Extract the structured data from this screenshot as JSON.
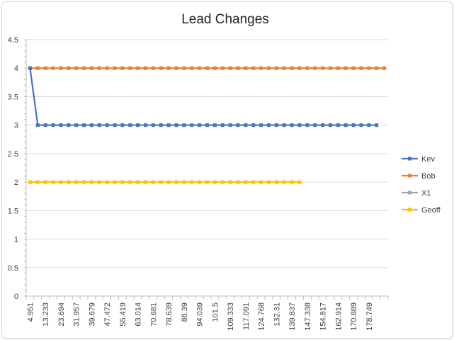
{
  "chart_data": {
    "type": "line",
    "title": "Lead Changes",
    "xlabel": "",
    "ylabel": "",
    "ylim": [
      0,
      4.5
    ],
    "yticks": [
      "0",
      "0.5",
      "1",
      "1.5",
      "2",
      "2.5",
      "3",
      "3.5",
      "4",
      "4.5"
    ],
    "xtick_labels": [
      "4.951",
      "13.233",
      "23.694",
      "31.957",
      "39.679",
      "47.472",
      "55.419",
      "63.014",
      "70.681",
      "78.639",
      "86.39",
      "94.039",
      "101.5",
      "109.333",
      "117.091",
      "124.768",
      "132.31",
      "139.837",
      "147.338",
      "154.817",
      "162.914",
      "170.889",
      "178.749"
    ],
    "category_count": 47,
    "grid": "horizontal",
    "legend_position": "right",
    "series": [
      {
        "name": "Kev",
        "color": "#4472C4",
        "values": [
          4,
          3,
          3,
          3,
          3,
          3,
          3,
          3,
          3,
          3,
          3,
          3,
          3,
          3,
          3,
          3,
          3,
          3,
          3,
          3,
          3,
          3,
          3,
          3,
          3,
          3,
          3,
          3,
          3,
          3,
          3,
          3,
          3,
          3,
          3,
          3,
          3,
          3,
          3,
          3,
          3,
          3,
          3,
          3,
          3,
          3
        ]
      },
      {
        "name": "Bob",
        "color": "#ED7D31",
        "values": [
          4,
          4,
          4,
          4,
          4,
          4,
          4,
          4,
          4,
          4,
          4,
          4,
          4,
          4,
          4,
          4,
          4,
          4,
          4,
          4,
          4,
          4,
          4,
          4,
          4,
          4,
          4,
          4,
          4,
          4,
          4,
          4,
          4,
          4,
          4,
          4,
          4,
          4,
          4,
          4,
          4,
          4,
          4,
          4,
          4,
          4,
          4
        ]
      },
      {
        "name": "X1",
        "color": "#A5A5A5",
        "values": []
      },
      {
        "name": "Geoff",
        "color": "#FFC000",
        "values": [
          2,
          2,
          2,
          2,
          2,
          2,
          2,
          2,
          2,
          2,
          2,
          2,
          2,
          2,
          2,
          2,
          2,
          2,
          2,
          2,
          2,
          2,
          2,
          2,
          2,
          2,
          2,
          2,
          2,
          2,
          2,
          2,
          2,
          2,
          2,
          2
        ]
      }
    ]
  }
}
